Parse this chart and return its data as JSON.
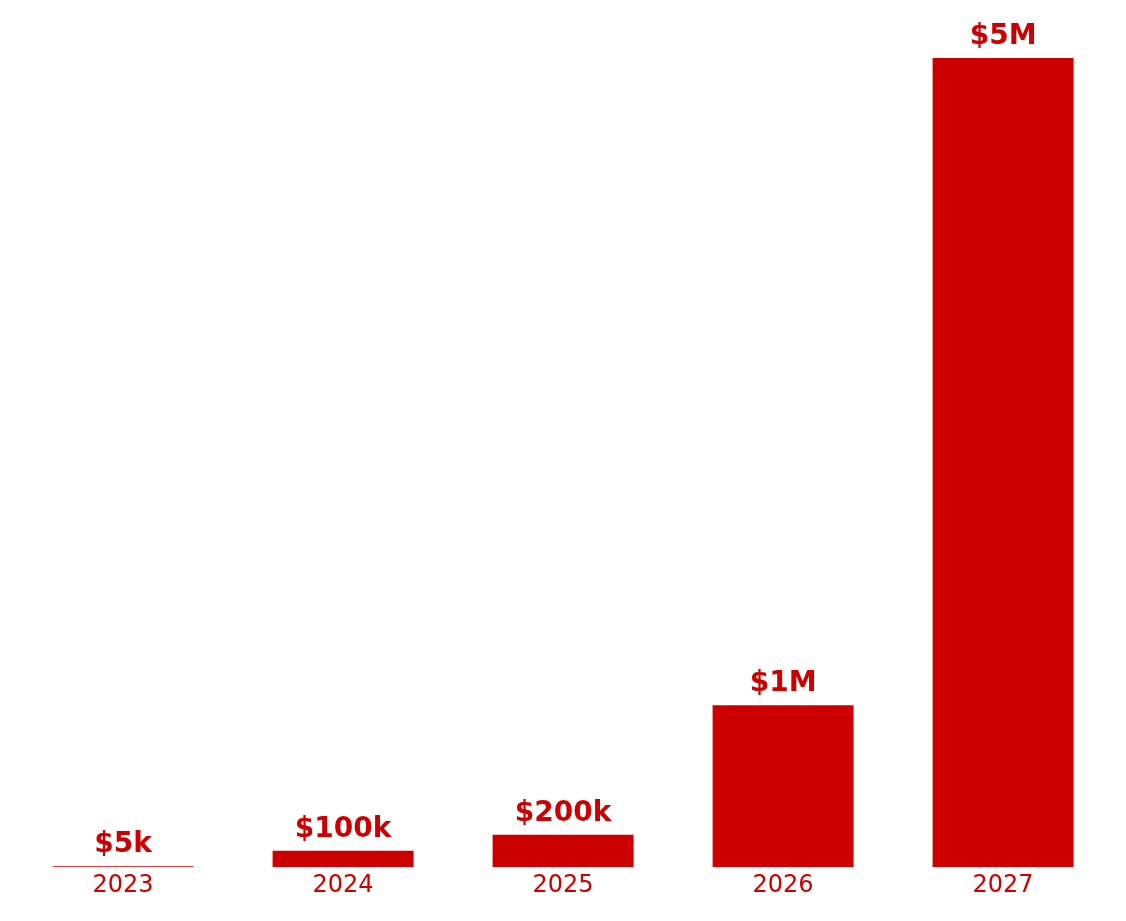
{
  "chart_data": {
    "type": "bar",
    "categories": [
      "2023",
      "2024",
      "2025",
      "2026",
      "2027"
    ],
    "values": [
      5000,
      100000,
      200000,
      1000000,
      5000000
    ],
    "value_labels": [
      "$5k",
      "$100k",
      "$200k",
      "$1M",
      "$5M"
    ],
    "color": "#cc0000",
    "grid": false,
    "legend": false,
    "tick_labels": "x"
  }
}
